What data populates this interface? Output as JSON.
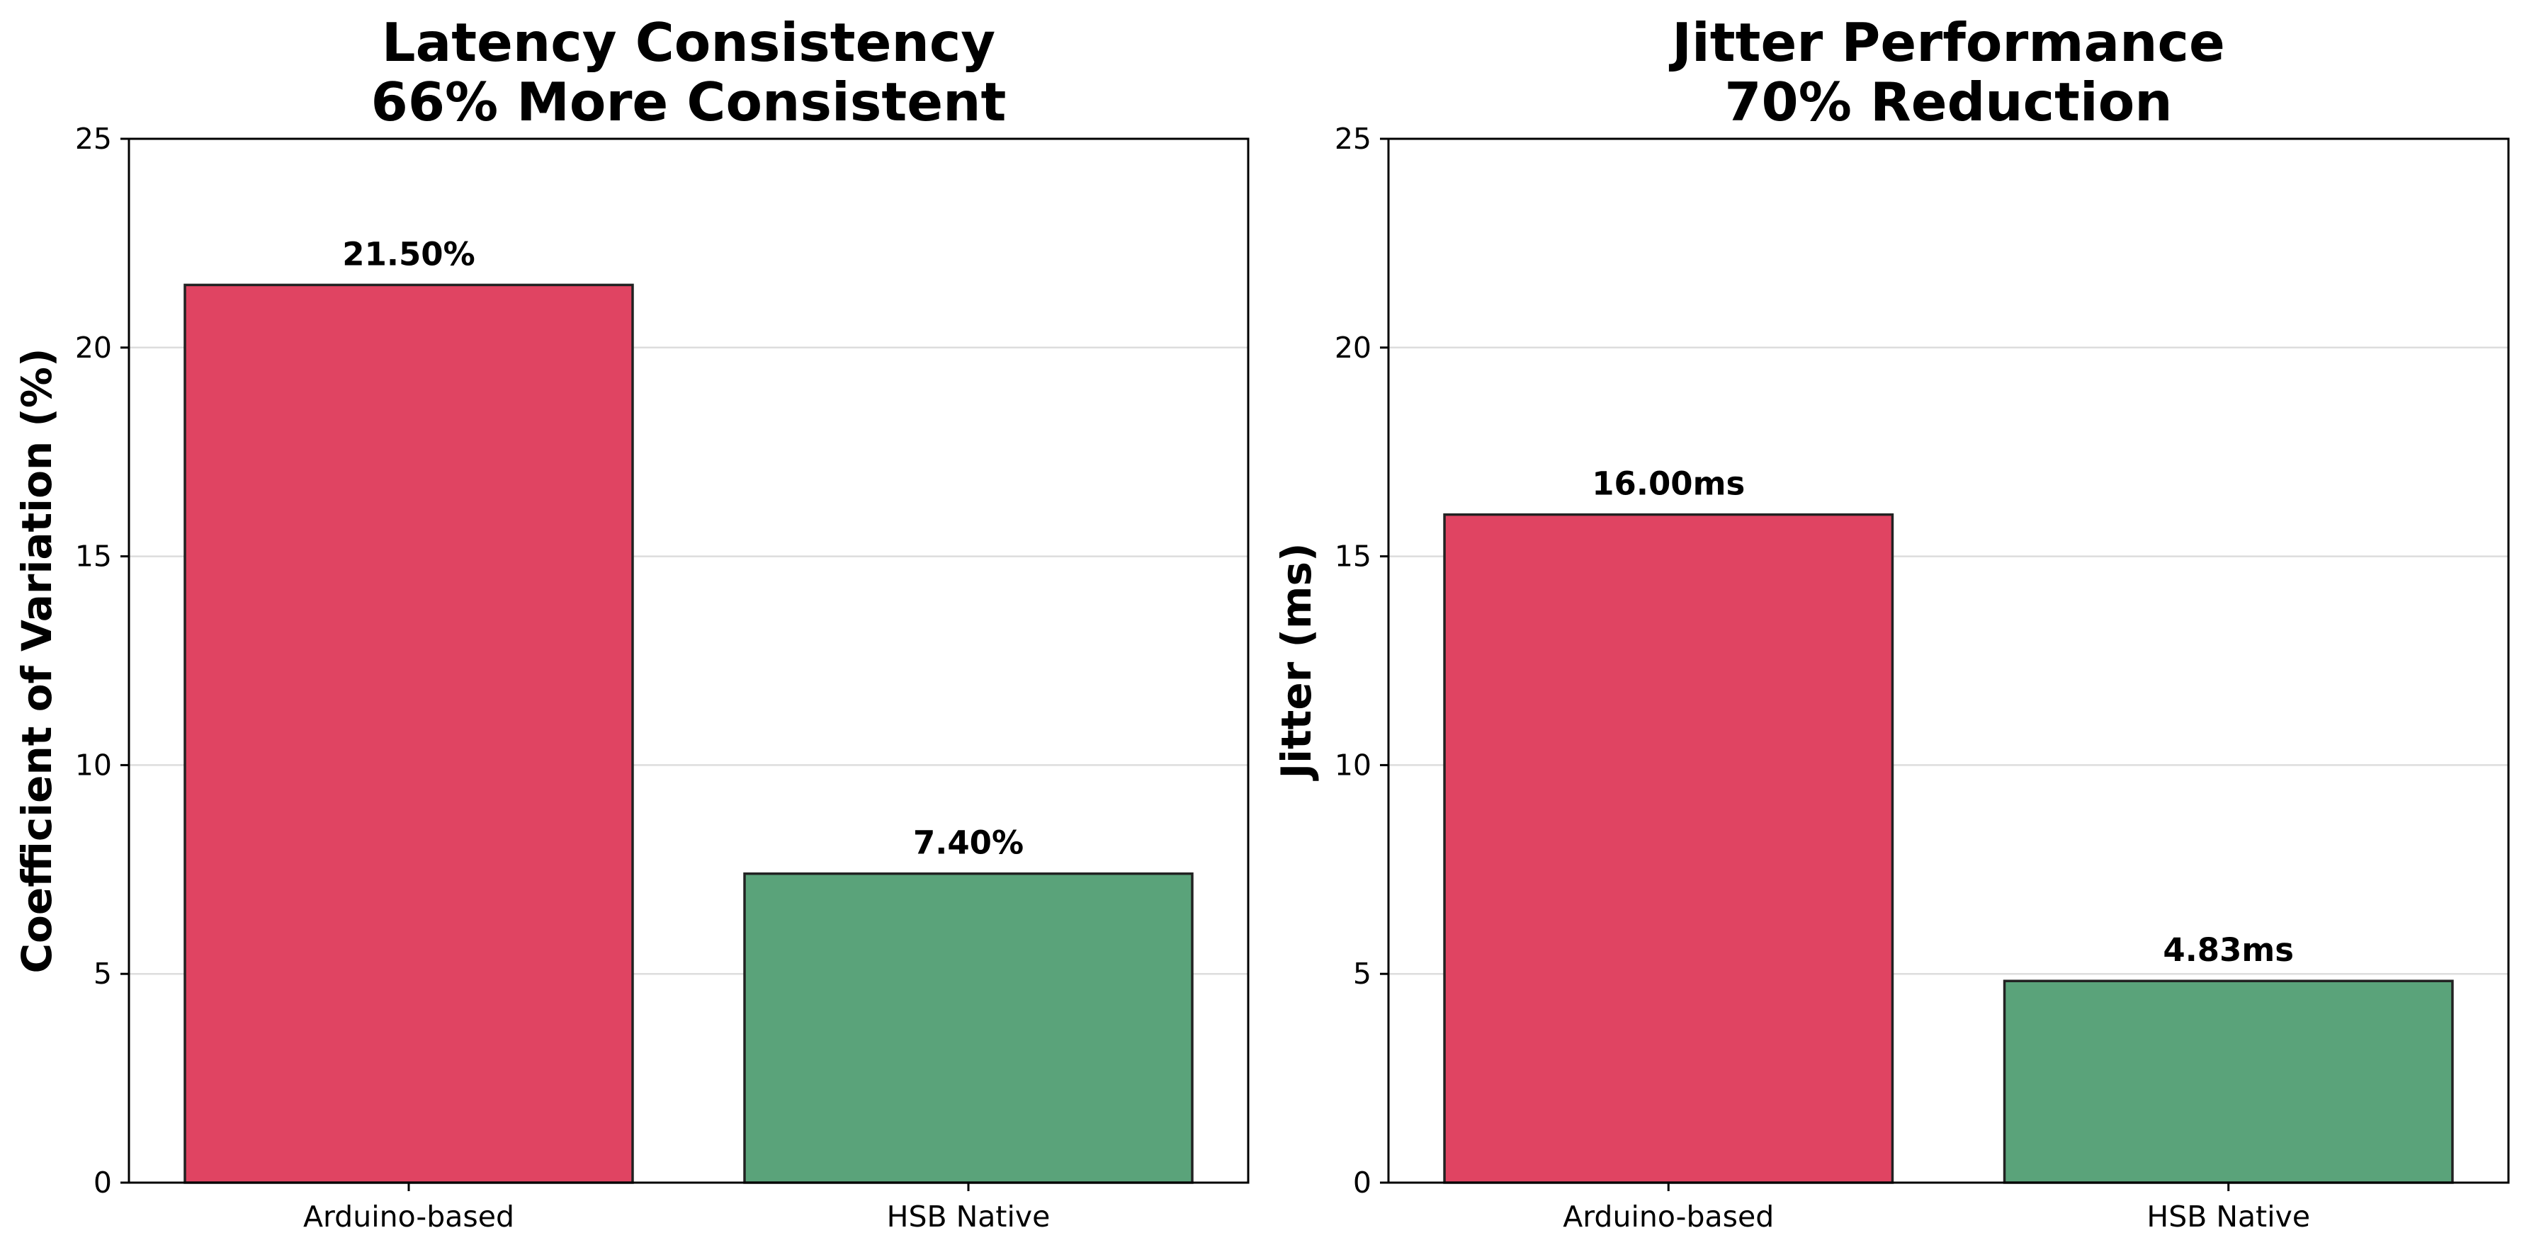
{
  "chart_data": [
    {
      "type": "bar",
      "title": [
        "Latency Consistency",
        "66% More Consistent"
      ],
      "xlabel": "",
      "ylabel": "Coefficient of Variation (%)",
      "categories": [
        "Arduino-based",
        "HSB Native"
      ],
      "values": [
        21.5,
        7.4
      ],
      "value_labels": [
        "21.50%",
        "7.40%"
      ],
      "colors": [
        "#e04462",
        "#5aa37a"
      ],
      "ylim": [
        0,
        25
      ],
      "yticks": [
        0,
        5,
        10,
        15,
        20,
        25
      ],
      "ytick_labels": [
        "0",
        "5",
        "10",
        "15",
        "20",
        "25"
      ],
      "grid": "y"
    },
    {
      "type": "bar",
      "title": [
        "Jitter Performance",
        "70% Reduction"
      ],
      "xlabel": "",
      "ylabel": "Jitter (ms)",
      "categories": [
        "Arduino-based",
        "HSB Native"
      ],
      "values": [
        16.0,
        4.83
      ],
      "value_labels": [
        "16.00ms",
        "4.83ms"
      ],
      "colors": [
        "#e04462",
        "#5aa37a"
      ],
      "ylim": [
        0,
        25
      ],
      "yticks": [
        0,
        5,
        10,
        15,
        20,
        25
      ],
      "ytick_labels": [
        "0",
        "5",
        "10",
        "15",
        "20",
        "25"
      ],
      "grid": "y"
    }
  ]
}
